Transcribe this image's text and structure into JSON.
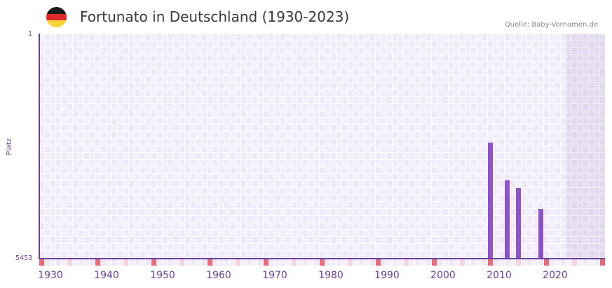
{
  "header": {
    "title": "Fortunato in Deutschland (1930-2023)",
    "source": "Quelle: Baby-Vornamen.de",
    "flag_colors": [
      "#1a1a1a",
      "#dd2a2a",
      "#fdd335"
    ]
  },
  "colors": {
    "bar": "#8b55c5",
    "axis": "#6b3fa0",
    "decade_marker": "#e46f7a",
    "half_decade_marker": "#f5d6de",
    "grid_a": "#efeafa",
    "grid_b": "#f3effc"
  },
  "chart_data": {
    "type": "bar",
    "title": "Fortunato in Deutschland (1930-2023)",
    "xlabel": "",
    "ylabel": "Platz",
    "y_inverted": true,
    "ylim": [
      5453,
      1
    ],
    "x_range": [
      1928,
      2028
    ],
    "x_ticks": [
      1930,
      1940,
      1950,
      1960,
      1970,
      1980,
      1990,
      2000,
      2010,
      2020
    ],
    "y_ticks": [
      "1",
      "5453"
    ],
    "shaded_region": [
      2022,
      2028
    ],
    "categories": [
      2008,
      2011,
      2013,
      2017
    ],
    "values": [
      2642,
      3557,
      3743,
      4251
    ],
    "grid": true,
    "legend": null
  }
}
